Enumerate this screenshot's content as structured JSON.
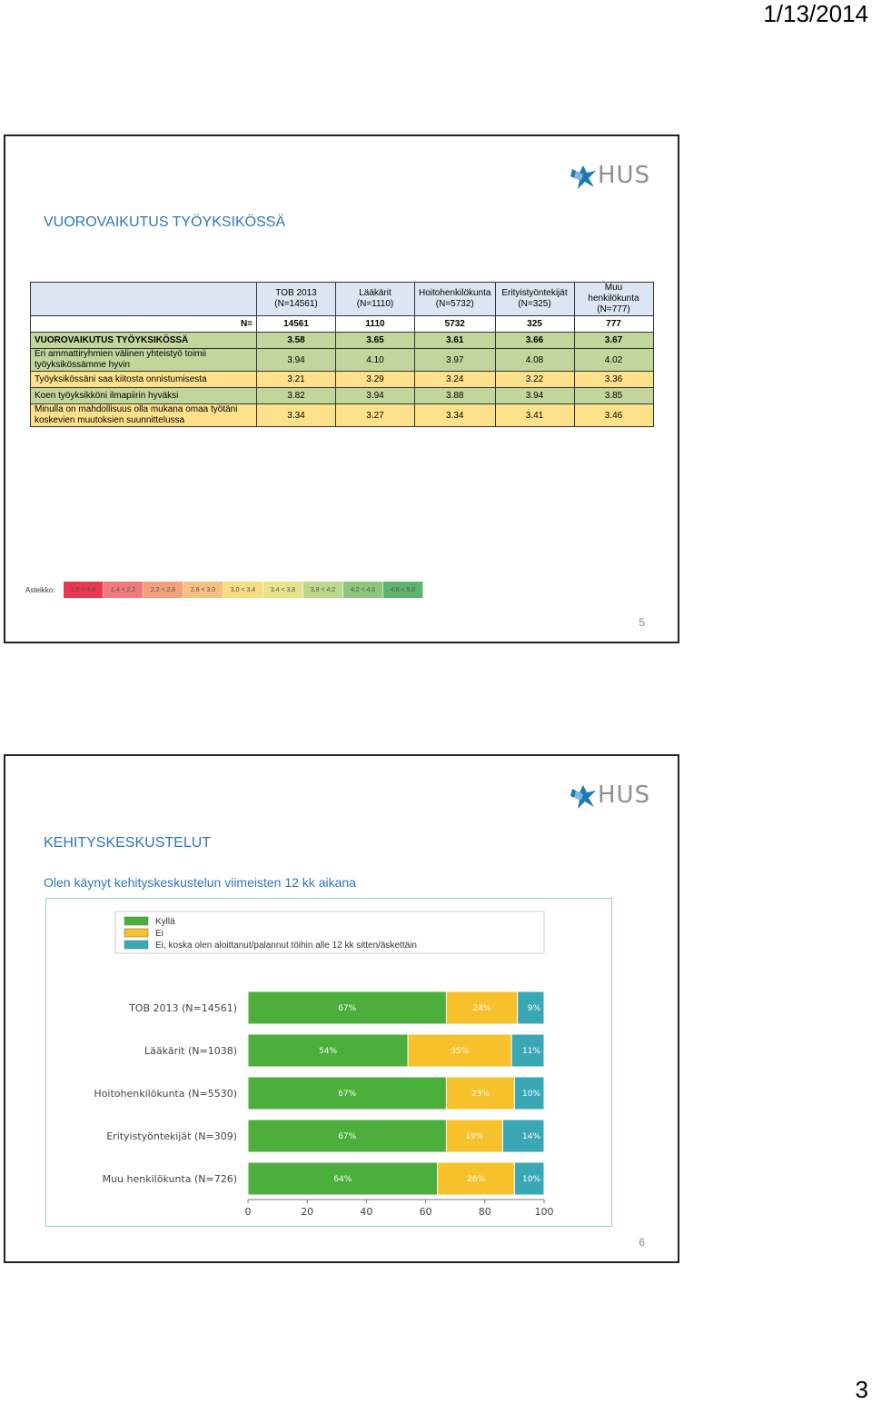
{
  "page": {
    "date": "1/13/2014",
    "number": "3"
  },
  "slide1": {
    "title": "VUOROVAIKUTUS TYÖYKSIKÖSSÄ",
    "logo": "HUS",
    "slide_number": "5",
    "table": {
      "headers": [
        "TOB 2013 (N=14561)",
        "Lääkärit (N=1110)",
        "Hoitohenkilökunta (N=5732)",
        "Erityistyöntekijät (N=325)",
        "Muu henkilökunta (N=777)"
      ],
      "n_label": "N=",
      "n_values": [
        "14561",
        "1110",
        "5732",
        "325",
        "777"
      ],
      "rows": [
        {
          "label": "VUOROVAIKUTUS TYÖYKSIKÖSSÄ",
          "values": [
            "3.58",
            "3.65",
            "3.61",
            "3.66",
            "3.67"
          ],
          "bold": true,
          "color": "green"
        },
        {
          "label": "Eri ammattiryhmien välinen yhteistyö toimii työyksikössämme hyvin",
          "values": [
            "3.94",
            "4.10",
            "3.97",
            "4.08",
            "4.02"
          ],
          "bold": false,
          "color": "green"
        },
        {
          "label": "Työyksikössäni saa kiitosta onnistumisesta",
          "values": [
            "3.21",
            "3.29",
            "3.24",
            "3.22",
            "3.36"
          ],
          "bold": false,
          "color": "yellow"
        },
        {
          "label": "Koen työyksikköni ilmapiirin hyväksi",
          "values": [
            "3.82",
            "3.94",
            "3.88",
            "3.94",
            "3.85"
          ],
          "bold": false,
          "color": "green"
        },
        {
          "label": "Minulla on mahdollisuus olla mukana omaa työtäni koskevien muutoksien suunnittelussa",
          "values": [
            "3.34",
            "3.27",
            "3.34",
            "3.41",
            "3.46"
          ],
          "bold": false,
          "color": "yellow"
        }
      ]
    },
    "scale": {
      "label": "Asteikko:",
      "cells": [
        {
          "text": "1,0 < 1,4",
          "color": "#e8384f"
        },
        {
          "text": "1,4 < 2,2",
          "color": "#f07a7a"
        },
        {
          "text": "2,2 < 2,6",
          "color": "#f4a07c"
        },
        {
          "text": "2,6 < 3,0",
          "color": "#f6c080"
        },
        {
          "text": "3,0 < 3,4",
          "color": "#f8dc80"
        },
        {
          "text": "3,4 < 3,8",
          "color": "#e6e48a"
        },
        {
          "text": "3,8 < 4,2",
          "color": "#bcd88a"
        },
        {
          "text": "4,2 < 4,6",
          "color": "#8ec67e"
        },
        {
          "text": "4,6 < 5,0",
          "color": "#5eb36e"
        }
      ]
    }
  },
  "slide2": {
    "title": "KEHITYSKESKUSTELUT",
    "subtitle": "Olen käynyt kehityskeskustelun viimeisten 12 kk aikana",
    "logo": "HUS",
    "slide_number": "6"
  },
  "chart_data": {
    "type": "bar",
    "orientation": "horizontal",
    "stacked": true,
    "categories": [
      "TOB 2013 (N=14561)",
      "Lääkärit (N=1038)",
      "Hoitohenkilökunta (N=5530)",
      "Erityistyöntekijät (N=309)",
      "Muu henkilökunta (N=726)"
    ],
    "series": [
      {
        "name": "Kyllä",
        "color": "#4caf3c",
        "values": [
          67,
          54,
          67,
          67,
          64
        ]
      },
      {
        "name": "Ei",
        "color": "#f6c12a",
        "values": [
          24,
          35,
          23,
          19,
          26
        ]
      },
      {
        "name": "Ei, koska olen aloittanut/palannut töihin alle 12 kk sitten/äskettäin",
        "color": "#3aa8b4",
        "values": [
          9,
          11,
          10,
          14,
          10
        ]
      }
    ],
    "xlim": [
      0,
      100
    ],
    "xticks": [
      "0",
      "20",
      "40",
      "60",
      "80",
      "100"
    ],
    "legend_position": "top",
    "grid": false
  }
}
